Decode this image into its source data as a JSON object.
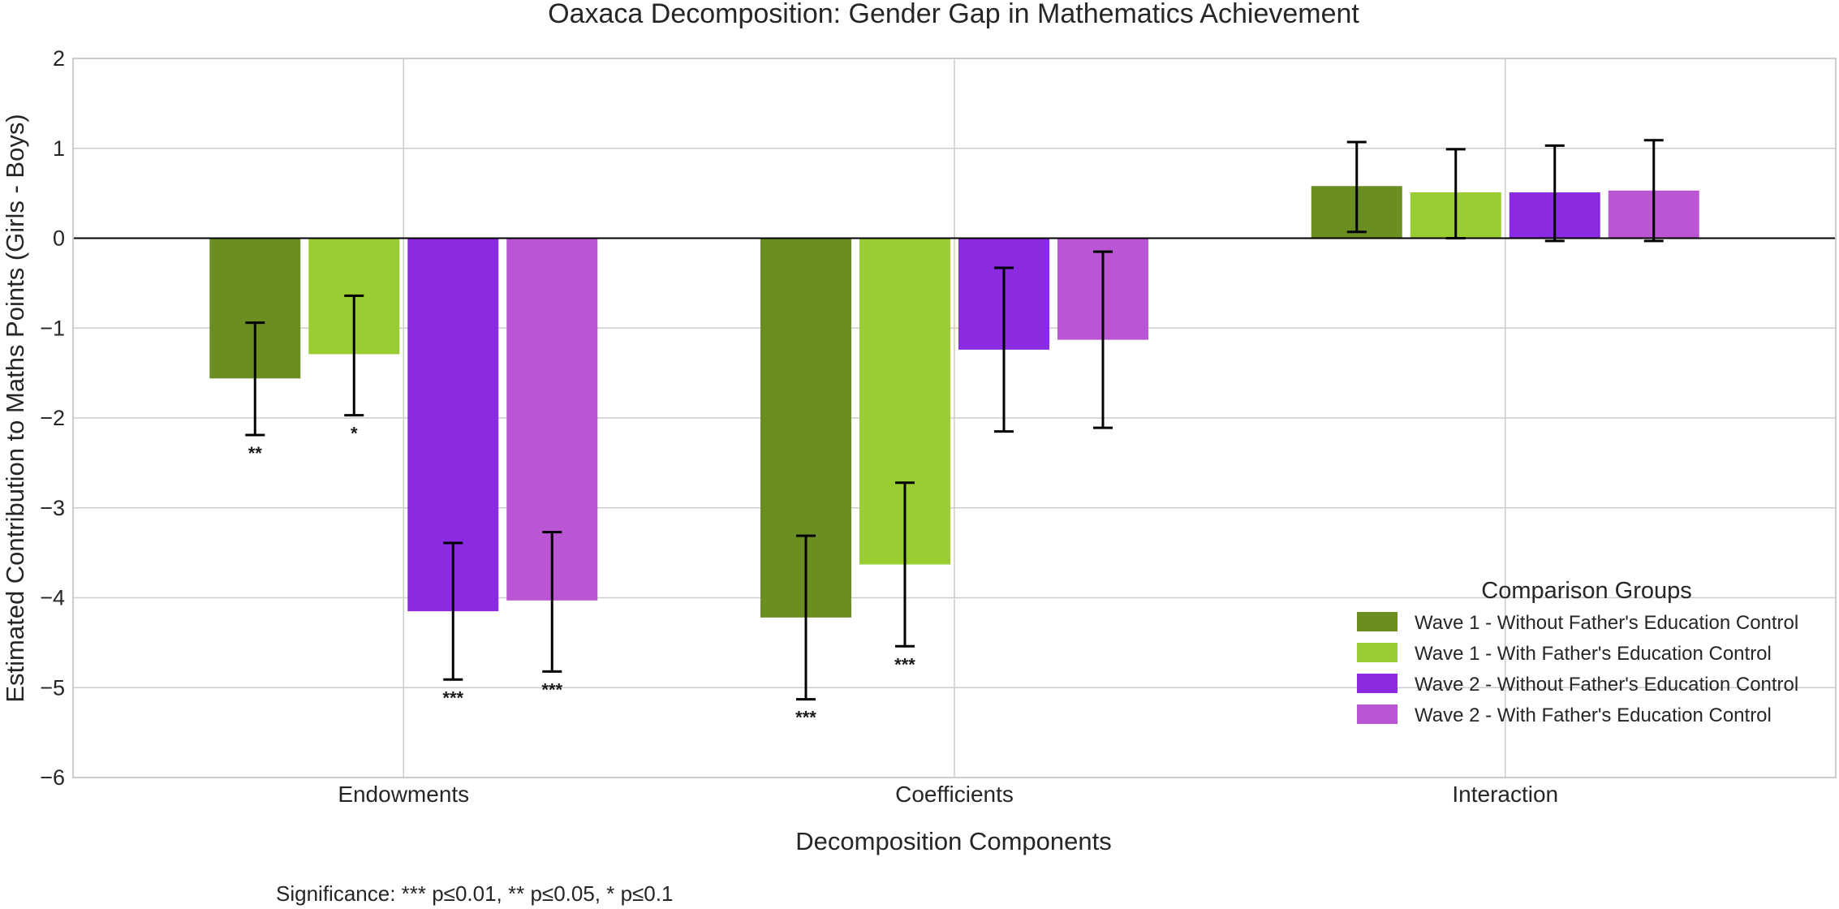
{
  "chart_data": {
    "type": "bar",
    "title": "Oaxaca Decomposition: Gender Gap in Mathematics Achievement",
    "xlabel": "Decomposition Components",
    "ylabel": "Estimated Contribution to Maths Points (Girls - Boys)",
    "ylim": [
      -6,
      2
    ],
    "yticks": [
      2,
      1,
      0,
      -1,
      -2,
      -3,
      -4,
      -5,
      -6
    ],
    "ytick_labels": [
      "2",
      "1",
      "0",
      "−1",
      "−2",
      "−3",
      "−4",
      "−5",
      "−6"
    ],
    "categories": [
      "Endowments",
      "Coefficients",
      "Interaction"
    ],
    "grid": true,
    "legend_title": "Comparison Groups",
    "legend_position": "lower-right",
    "series": [
      {
        "name": "Wave 1 - Without Father's Education Control",
        "color": "#6b8e23",
        "values": [
          -1.56,
          -4.22,
          0.58
        ],
        "ci_low": [
          -2.19,
          -5.13,
          0.07
        ],
        "ci_high": [
          -0.94,
          -3.31,
          1.07
        ],
        "significance": [
          "**",
          "***",
          ""
        ]
      },
      {
        "name": "Wave 1 - With Father's Education Control",
        "color": "#9acd32",
        "values": [
          -1.29,
          -3.63,
          0.51
        ],
        "ci_low": [
          -1.97,
          -4.54,
          0.0
        ],
        "ci_high": [
          -0.64,
          -2.72,
          0.99
        ],
        "significance": [
          "*",
          "***",
          ""
        ]
      },
      {
        "name": "Wave 2 - Without Father's Education Control",
        "color": "#8a2be2",
        "values": [
          -4.15,
          -1.24,
          0.51
        ],
        "ci_low": [
          -4.91,
          -2.15,
          -0.03
        ],
        "ci_high": [
          -3.39,
          -0.33,
          1.03
        ],
        "significance": [
          "***",
          "",
          ""
        ]
      },
      {
        "name": "Wave 2 - With Father's Education Control",
        "color": "#ba55d3",
        "values": [
          -4.03,
          -1.13,
          0.53
        ],
        "ci_low": [
          -4.82,
          -2.11,
          -0.03
        ],
        "ci_high": [
          -3.27,
          -0.15,
          1.09
        ],
        "significance": [
          "***",
          "",
          ""
        ]
      }
    ],
    "footnote": "Significance: *** p≤0.01, ** p≤0.05, * p≤0.1"
  }
}
